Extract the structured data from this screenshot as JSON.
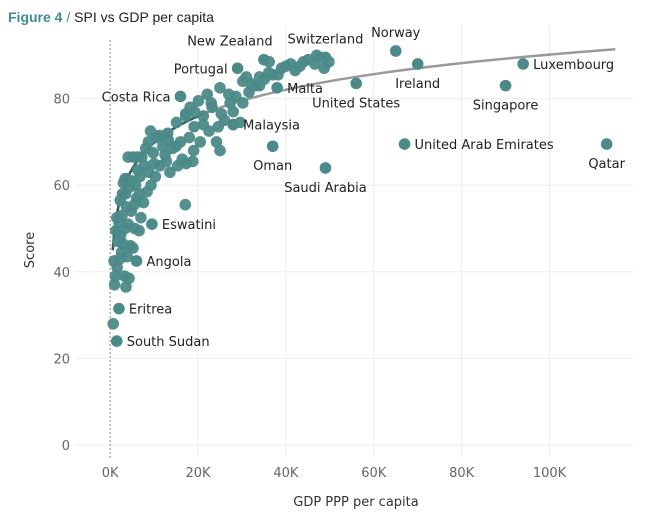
{
  "header": {
    "figure_number": "Figure 4",
    "separator": " / ",
    "title": "SPI vs GDP per capita"
  },
  "colors": {
    "accent": "#3e8e8e",
    "point": "#4a8a88",
    "trend": "#9a9a9a",
    "trend_dark": "#2f5f5d",
    "grid": "#eeeeee"
  },
  "chart_data": {
    "type": "scatter",
    "title": "SPI vs GDP per capita",
    "xlabel": "GDP PPP per capita",
    "ylabel": "Score",
    "xlim": [
      -8000,
      119000
    ],
    "ylim": [
      -3,
      97
    ],
    "xticks": [
      {
        "value": 0,
        "label": "0K"
      },
      {
        "value": 20000,
        "label": "20K"
      },
      {
        "value": 40000,
        "label": "40K"
      },
      {
        "value": 60000,
        "label": "60K"
      },
      {
        "value": 80000,
        "label": "80K"
      },
      {
        "value": 100000,
        "label": "100K"
      }
    ],
    "yticks": [
      {
        "value": 0,
        "label": "0"
      },
      {
        "value": 20,
        "label": "20"
      },
      {
        "value": 40,
        "label": "40"
      },
      {
        "value": 60,
        "label": "60"
      },
      {
        "value": 80,
        "label": "80"
      }
    ],
    "grid": true,
    "reference_line_x": 0,
    "trendline": {
      "type": "logarithmic",
      "a": 8.83,
      "b": -11.5,
      "min_gdp": 600,
      "max_gdp": 119000
    },
    "labeled_points": [
      {
        "name": "Norway",
        "gdp": 65000,
        "score": 91,
        "label_side": "above"
      },
      {
        "name": "Switzerland",
        "gdp": 49000,
        "score": 89.5,
        "label_side": "above"
      },
      {
        "name": "New Zealand",
        "gdp": 35000,
        "score": 89,
        "label_side": "above-left"
      },
      {
        "name": "Portugal",
        "gdp": 29000,
        "score": 87,
        "label_side": "left"
      },
      {
        "name": "Luxembourg",
        "gdp": 94000,
        "score": 88,
        "label_side": "right"
      },
      {
        "name": "Ireland",
        "gdp": 70000,
        "score": 88,
        "label_side": "below"
      },
      {
        "name": "Costa Rica",
        "gdp": 16000,
        "score": 80.5,
        "label_side": "left"
      },
      {
        "name": "Malta",
        "gdp": 38000,
        "score": 82.5,
        "label_side": "right"
      },
      {
        "name": "United States",
        "gdp": 56000,
        "score": 83.5,
        "label_side": "below"
      },
      {
        "name": "Singapore",
        "gdp": 90000,
        "score": 83,
        "label_side": "below"
      },
      {
        "name": "Malaysia",
        "gdp": 28000,
        "score": 74,
        "label_side": "right"
      },
      {
        "name": "Oman",
        "gdp": 37000,
        "score": 69,
        "label_side": "below"
      },
      {
        "name": "United Arab Emirates",
        "gdp": 67000,
        "score": 69.5,
        "label_side": "right"
      },
      {
        "name": "Qatar",
        "gdp": 113000,
        "score": 69.5,
        "label_side": "below"
      },
      {
        "name": "Saudi Arabia",
        "gdp": 49000,
        "score": 64,
        "label_side": "below"
      },
      {
        "name": "Eswatini",
        "gdp": 9500,
        "score": 51,
        "label_side": "right"
      },
      {
        "name": "Angola",
        "gdp": 6000,
        "score": 42.5,
        "label_side": "right"
      },
      {
        "name": "Eritrea",
        "gdp": 2000,
        "score": 31.5,
        "label_side": "right"
      },
      {
        "name": "South Sudan",
        "gdp": 1500,
        "score": 24,
        "label_side": "right"
      }
    ],
    "points": [
      [
        700,
        28
      ],
      [
        1000,
        37
      ],
      [
        1200,
        39
      ],
      [
        900,
        42.5
      ],
      [
        1600,
        41
      ],
      [
        2200,
        43
      ],
      [
        2600,
        44.5
      ],
      [
        3300,
        39
      ],
      [
        3600,
        36.5
      ],
      [
        4300,
        38.5
      ],
      [
        3900,
        43.5
      ],
      [
        4600,
        46
      ],
      [
        5200,
        45.5
      ],
      [
        2900,
        46.5
      ],
      [
        1800,
        47
      ],
      [
        2400,
        48.5
      ],
      [
        1300,
        49.5
      ],
      [
        3400,
        50
      ],
      [
        4100,
        51
      ],
      [
        5600,
        50
      ],
      [
        6600,
        49.5
      ],
      [
        7000,
        52.5
      ],
      [
        2000,
        51.5
      ],
      [
        2700,
        53
      ],
      [
        1500,
        52.5
      ],
      [
        3700,
        55
      ],
      [
        4800,
        54
      ],
      [
        6000,
        57
      ],
      [
        7600,
        56
      ],
      [
        2300,
        56.5
      ],
      [
        3500,
        58
      ],
      [
        4400,
        59.5
      ],
      [
        3000,
        60.5
      ],
      [
        3800,
        61.5
      ],
      [
        4900,
        61
      ],
      [
        5800,
        60
      ],
      [
        6800,
        62
      ],
      [
        8400,
        58.5
      ],
      [
        9300,
        60
      ],
      [
        6300,
        63.5
      ],
      [
        7800,
        64.5
      ],
      [
        8800,
        63
      ],
      [
        10300,
        62
      ],
      [
        11300,
        64.5
      ],
      [
        12800,
        65.5
      ],
      [
        13600,
        63
      ],
      [
        15400,
        64.5
      ],
      [
        16400,
        66
      ],
      [
        17300,
        65
      ],
      [
        18800,
        65.5
      ],
      [
        5300,
        66.5
      ],
      [
        7200,
        66.5
      ],
      [
        9800,
        67.5
      ],
      [
        12000,
        69
      ],
      [
        14200,
        68.5
      ],
      [
        16000,
        70
      ],
      [
        18000,
        71
      ],
      [
        20500,
        70
      ],
      [
        22500,
        72.5
      ],
      [
        24600,
        73.5
      ],
      [
        8100,
        68.5
      ],
      [
        10700,
        71
      ],
      [
        13100,
        72
      ],
      [
        15100,
        74.5
      ],
      [
        17200,
        76
      ],
      [
        19200,
        77
      ],
      [
        21200,
        76
      ],
      [
        23200,
        78
      ],
      [
        25300,
        76.5
      ],
      [
        27300,
        79
      ],
      [
        28600,
        80.5
      ],
      [
        30200,
        79
      ],
      [
        31600,
        81.5
      ],
      [
        33200,
        83
      ],
      [
        35100,
        84.5
      ],
      [
        37000,
        85.5
      ],
      [
        39000,
        87
      ],
      [
        41100,
        88
      ],
      [
        43200,
        87.5
      ],
      [
        45100,
        89
      ],
      [
        46600,
        88
      ],
      [
        47800,
        89.5
      ],
      [
        48700,
        87
      ],
      [
        49800,
        88.5
      ],
      [
        42100,
        86.5
      ],
      [
        36100,
        86
      ],
      [
        34000,
        85
      ],
      [
        32000,
        83.5
      ],
      [
        30200,
        84
      ],
      [
        25000,
        82.5
      ],
      [
        22100,
        81
      ],
      [
        20100,
        79.5
      ],
      [
        18200,
        78
      ],
      [
        17200,
        76.5
      ],
      [
        19100,
        73.5
      ],
      [
        21200,
        74
      ],
      [
        24200,
        70
      ],
      [
        25000,
        68
      ],
      [
        17100,
        55.5
      ],
      [
        9200,
        72.5
      ],
      [
        11200,
        71.5
      ],
      [
        13200,
        70.5
      ],
      [
        8700,
        70
      ],
      [
        6200,
        66.5
      ],
      [
        3400,
        61.5
      ],
      [
        4100,
        66.5
      ],
      [
        26000,
        75
      ],
      [
        28000,
        77
      ],
      [
        29600,
        74.5
      ],
      [
        31000,
        85
      ],
      [
        34000,
        83
      ],
      [
        36200,
        88.5
      ],
      [
        38200,
        85.5
      ],
      [
        40000,
        87.5
      ],
      [
        44000,
        88.5
      ],
      [
        47000,
        90
      ],
      [
        27000,
        81
      ],
      [
        23000,
        79
      ],
      [
        15000,
        69
      ],
      [
        19000,
        68
      ],
      [
        12500,
        67
      ],
      [
        10000,
        65
      ],
      [
        6700,
        58
      ],
      [
        5500,
        55.5
      ],
      [
        2800,
        58
      ]
    ]
  }
}
